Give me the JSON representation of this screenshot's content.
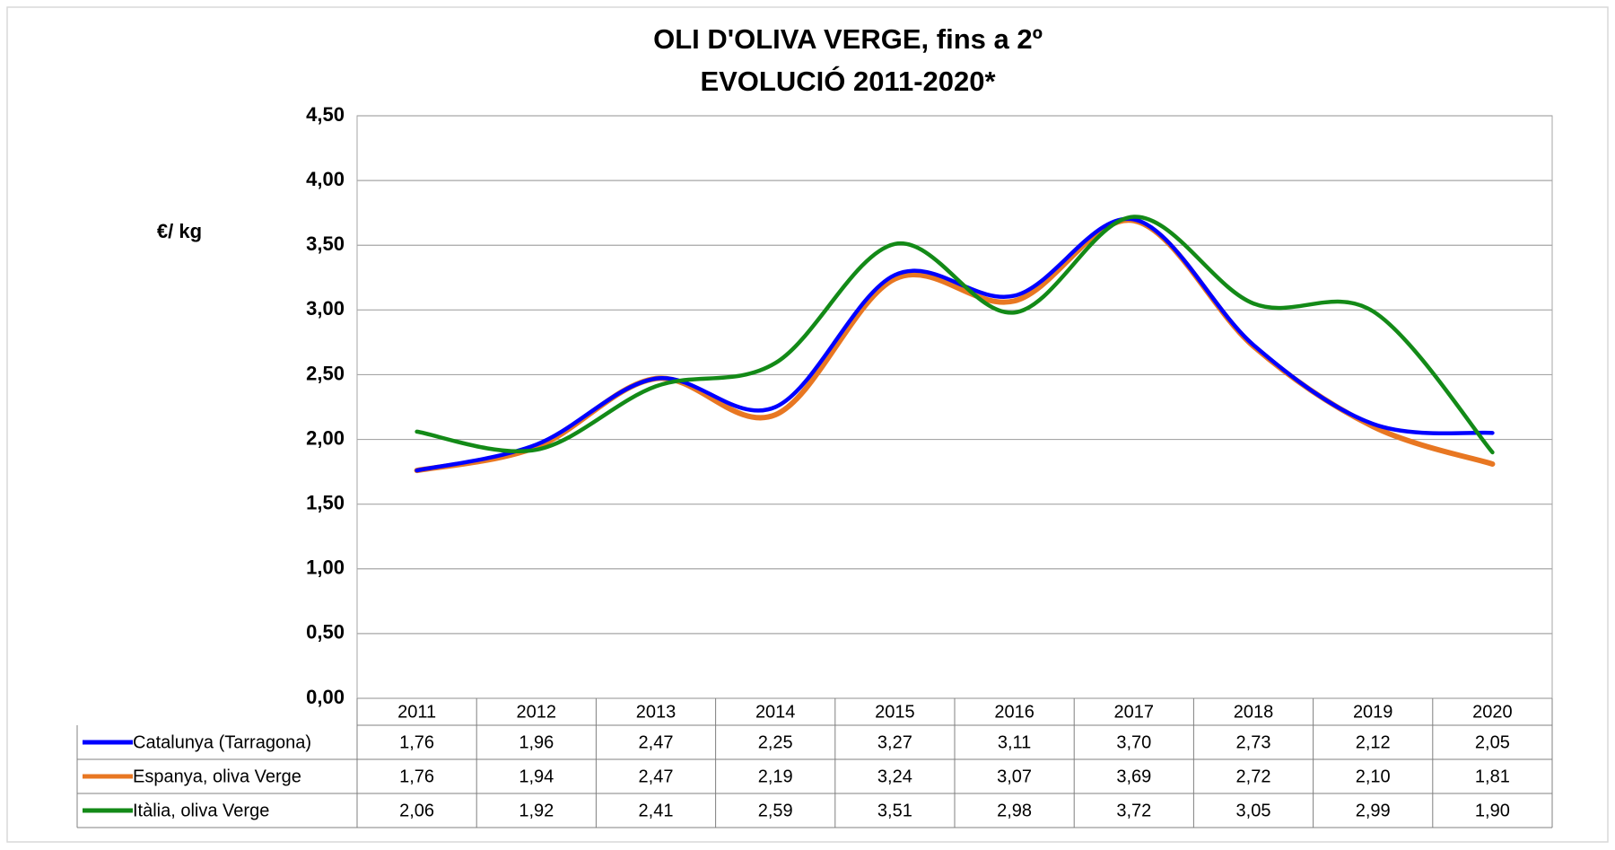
{
  "chart_data": {
    "type": "line",
    "title": "OLI D'OLIVA VERGE, fins a 2º",
    "subtitle": "EVOLUCIÓ 2011-2020*",
    "y_label": "€/ kg",
    "categories": [
      "2011",
      "2012",
      "2013",
      "2014",
      "2015",
      "2016",
      "2017",
      "2018",
      "2019",
      "2020"
    ],
    "series": [
      {
        "name": "Catalunya (Tarragona)",
        "color": "#0000ff",
        "values": [
          1.76,
          1.96,
          2.47,
          2.25,
          3.27,
          3.11,
          3.7,
          2.73,
          2.12,
          2.05
        ],
        "value_labels": [
          "1,76",
          "1,96",
          "2,47",
          "2,25",
          "3,27",
          "3,11",
          "3,70",
          "2,73",
          "2,12",
          "2,05"
        ]
      },
      {
        "name": "Espanya, oliva Verge",
        "color": "#e87722",
        "values": [
          1.76,
          1.94,
          2.47,
          2.19,
          3.24,
          3.07,
          3.69,
          2.72,
          2.1,
          1.81
        ],
        "value_labels": [
          "1,76",
          "1,94",
          "2,47",
          "2,19",
          "3,24",
          "3,07",
          "3,69",
          "2,72",
          "2,10",
          "1,81"
        ]
      },
      {
        "name": "Itàlia, oliva Verge",
        "color": "#138a17",
        "values": [
          2.06,
          1.92,
          2.41,
          2.59,
          3.51,
          2.98,
          3.72,
          3.05,
          2.99,
          1.9
        ],
        "value_labels": [
          "2,06",
          "1,92",
          "2,41",
          "2,59",
          "3,51",
          "2,98",
          "3,72",
          "3,05",
          "2,99",
          "1,90"
        ]
      }
    ],
    "ylim": [
      0,
      4.5
    ],
    "yticks": [
      {
        "value": 0,
        "label": "0,00"
      },
      {
        "value": 0.5,
        "label": "0,50"
      },
      {
        "value": 1,
        "label": "1,00"
      },
      {
        "value": 1.5,
        "label": "1,50"
      },
      {
        "value": 2,
        "label": "2,00"
      },
      {
        "value": 2.5,
        "label": "2,50"
      },
      {
        "value": 3,
        "label": "3,00"
      },
      {
        "value": 3.5,
        "label": "3,50"
      },
      {
        "value": 4,
        "label": "4,00"
      },
      {
        "value": 4.5,
        "label": "4,50"
      }
    ],
    "grid": true,
    "smooth": true
  }
}
